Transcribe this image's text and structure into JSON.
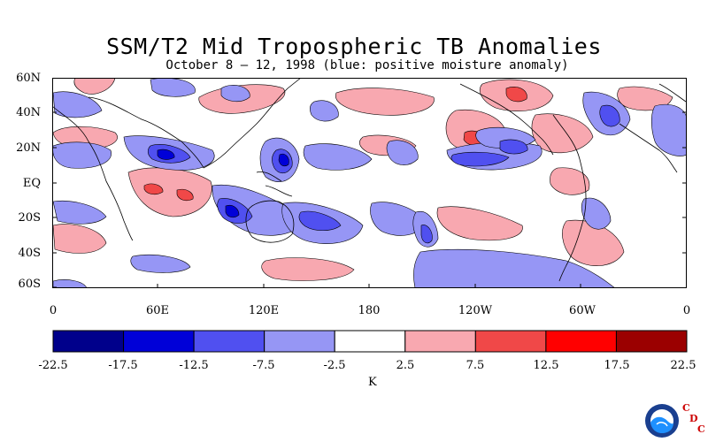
{
  "title": "SSM/T2 Mid Tropospheric TB Anomalies",
  "subtitle": "October 8 – 12, 1998 (blue: positive moisture anomaly)",
  "map": {
    "lat_labels": [
      "60N",
      "40N",
      "20N",
      "EQ",
      "20S",
      "40S",
      "60S"
    ],
    "lon_labels": [
      "0",
      "60E",
      "120E",
      "180",
      "120W",
      "60W",
      "0"
    ]
  },
  "colorbar": {
    "tick_labels": [
      "-22.5",
      "-17.5",
      "-12.5",
      "-7.5",
      "-2.5",
      "2.5",
      "7.5",
      "12.5",
      "17.5",
      "22.5"
    ],
    "colors": [
      "#00008b",
      "#0000d8",
      "#5050f0",
      "#9696f5",
      "#ffffff",
      "#f8a8b0",
      "#f04848",
      "#ff0000",
      "#9b0000"
    ],
    "unit": "K"
  },
  "logo": {
    "name": "NOAA",
    "letters": [
      "C",
      "D",
      "C"
    ]
  }
}
